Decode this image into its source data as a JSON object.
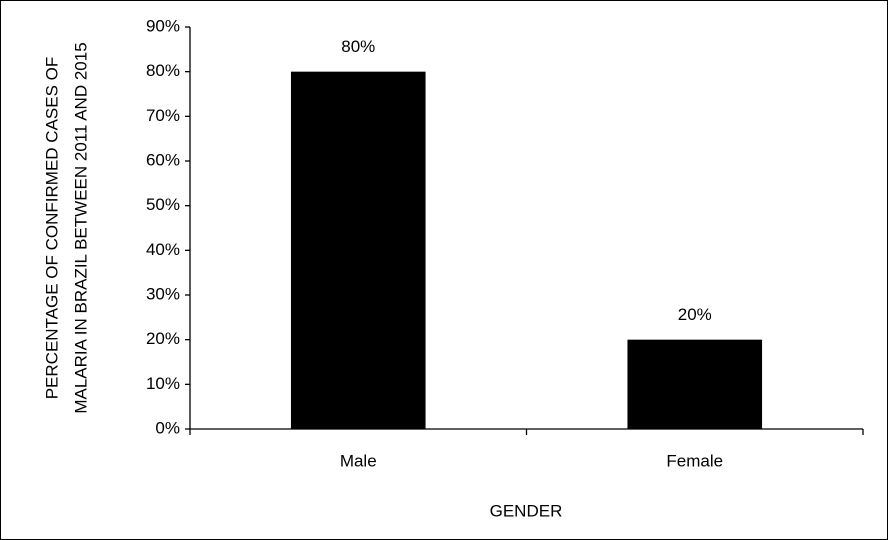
{
  "chart_data": {
    "type": "bar",
    "y_label": "PERCENTAGE OF CONFIRMED CASES OF MALARIA IN BRAZIL BETWEEN 2011 AND 2015",
    "x_label": "GENDER",
    "categories": [
      "Male",
      "Female"
    ],
    "values": [
      80,
      20
    ],
    "value_labels": [
      "80%",
      "20%"
    ],
    "color": "#000000",
    "ylim": [
      0,
      90
    ],
    "yticks": [
      {
        "value": 0,
        "label": "0%"
      },
      {
        "value": 10,
        "label": "10%"
      },
      {
        "value": 20,
        "label": "20%"
      },
      {
        "value": 30,
        "label": "30%"
      },
      {
        "value": 40,
        "label": "40%"
      },
      {
        "value": 50,
        "label": "50%"
      },
      {
        "value": 60,
        "label": "60%"
      },
      {
        "value": 70,
        "label": "70%"
      },
      {
        "value": 80,
        "label": "80%"
      },
      {
        "value": 90,
        "label": "90%"
      }
    ],
    "grid": false
  }
}
